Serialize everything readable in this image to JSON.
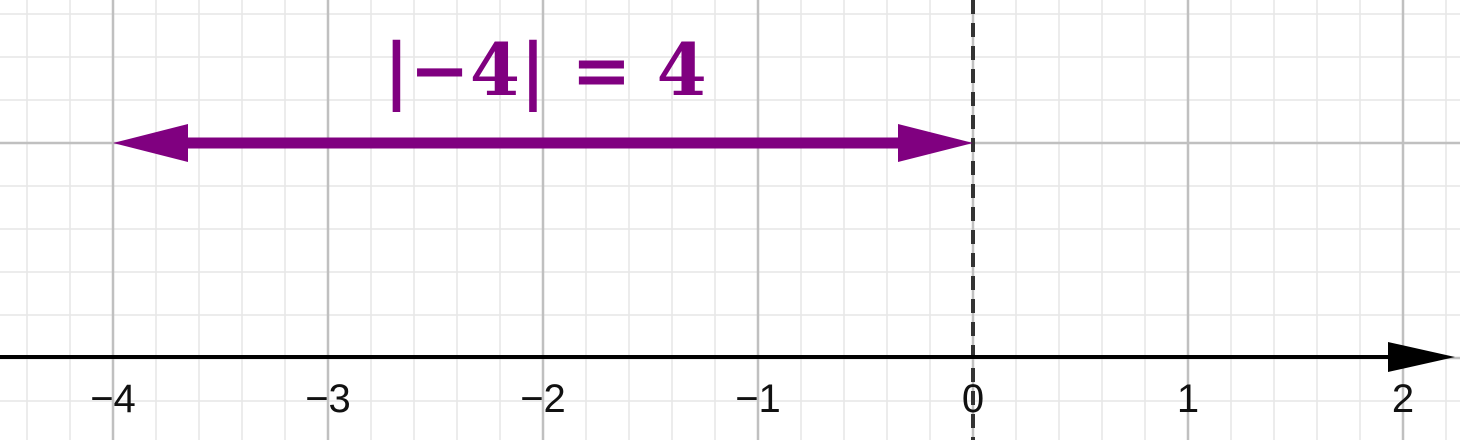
{
  "colors": {
    "accent": "#800080",
    "axis": "#000000",
    "grid_major": "#c0c0c0",
    "grid_minor": "#e6e6e6",
    "reference_line": "#333333"
  },
  "number_line": {
    "x_min": -4.5,
    "x_max": 2.2,
    "tick_labels": [
      "−4",
      "−3",
      "−2",
      "−1",
      "0",
      "1",
      "2"
    ],
    "tick_values": [
      -4,
      -3,
      -2,
      -1,
      0,
      1,
      2
    ],
    "grid": true,
    "minor_subdivisions": 5,
    "arrow_direction": "right"
  },
  "reference_line": {
    "x": 0,
    "style": "dashed"
  },
  "distance_arrow": {
    "from": -4,
    "to": 0,
    "double_headed": true
  },
  "annotation": {
    "text": "|−4| = 4"
  }
}
